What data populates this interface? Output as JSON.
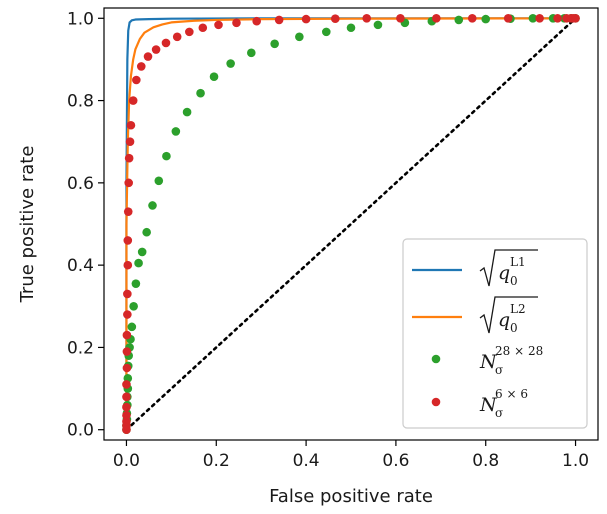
{
  "chart_data": {
    "type": "line",
    "xlabel": "False positive rate",
    "ylabel": "True positive rate",
    "xlim": [
      -0.05,
      1.05
    ],
    "ylim": [
      -0.025,
      1.025
    ],
    "xticks": [
      0.0,
      0.2,
      0.4,
      0.6,
      0.8,
      1.0
    ],
    "yticks": [
      0.0,
      0.2,
      0.4,
      0.6,
      0.8,
      1.0
    ],
    "tick_labels": [
      "0.0",
      "0.2",
      "0.4",
      "0.6",
      "0.8",
      "1.0"
    ],
    "legend_position": "lower-right",
    "series": [
      {
        "name": "√q₀ᴸ¹",
        "legend_base": "q",
        "legend_sub": "0",
        "legend_sup": "L1",
        "legend_sqrt": true,
        "style": "line",
        "color": "#1f77b4",
        "x": [
          0.0,
          0.0,
          0.002,
          0.004,
          0.007,
          0.012,
          0.02,
          0.05,
          0.1,
          0.3,
          0.6,
          1.0
        ],
        "y": [
          0.0,
          0.6,
          0.9,
          0.97,
          0.99,
          0.995,
          0.997,
          0.998,
          0.999,
          1.0,
          1.0,
          1.0
        ]
      },
      {
        "name": "√q₀ᴸ²",
        "legend_base": "q",
        "legend_sub": "0",
        "legend_sup": "L2",
        "legend_sqrt": true,
        "style": "line",
        "color": "#ff7f0e",
        "x": [
          0.0,
          0.0,
          0.003,
          0.006,
          0.01,
          0.015,
          0.02,
          0.03,
          0.04,
          0.06,
          0.08,
          0.1,
          0.15,
          0.2,
          0.3,
          0.5,
          1.0
        ],
        "y": [
          0.0,
          0.5,
          0.7,
          0.8,
          0.86,
          0.9,
          0.925,
          0.95,
          0.965,
          0.978,
          0.985,
          0.99,
          0.994,
          0.996,
          0.998,
          0.999,
          1.0
        ]
      },
      {
        "name": "N_σ^(28×28)",
        "legend_base": "N",
        "legend_sub": "σ",
        "legend_sup": "28 × 28",
        "legend_sqrt": false,
        "style": "scatter",
        "color": "#2ca02c",
        "x": [
          0.0,
          0.0,
          0.001,
          0.001,
          0.002,
          0.002,
          0.003,
          0.003,
          0.004,
          0.005,
          0.007,
          0.009,
          0.012,
          0.016,
          0.021,
          0.027,
          0.035,
          0.045,
          0.058,
          0.072,
          0.089,
          0.11,
          0.135,
          0.165,
          0.195,
          0.232,
          0.278,
          0.33,
          0.385,
          0.445,
          0.5,
          0.56,
          0.62,
          0.68,
          0.74,
          0.8,
          0.855,
          0.905,
          0.95,
          0.975,
          0.99,
          1.0
        ],
        "y": [
          0.0,
          0.01,
          0.025,
          0.04,
          0.06,
          0.08,
          0.1,
          0.125,
          0.155,
          0.18,
          0.2,
          0.22,
          0.25,
          0.3,
          0.355,
          0.405,
          0.432,
          0.48,
          0.545,
          0.605,
          0.665,
          0.725,
          0.772,
          0.818,
          0.858,
          0.89,
          0.916,
          0.938,
          0.955,
          0.967,
          0.977,
          0.984,
          0.989,
          0.993,
          0.996,
          0.998,
          0.999,
          1.0,
          1.0,
          1.0,
          1.0,
          1.0
        ]
      },
      {
        "name": "N_σ^(6×6)",
        "legend_base": "N",
        "legend_sub": "σ",
        "legend_sup": "6 × 6",
        "legend_sqrt": false,
        "style": "scatter",
        "color": "#d62728",
        "x": [
          0.0,
          0.0,
          0.0,
          0.0,
          0.0,
          0.0,
          0.0,
          0.001,
          0.001,
          0.001,
          0.002,
          0.002,
          0.003,
          0.003,
          0.004,
          0.005,
          0.006,
          0.008,
          0.01,
          0.015,
          0.022,
          0.033,
          0.048,
          0.066,
          0.088,
          0.113,
          0.14,
          0.17,
          0.205,
          0.245,
          0.29,
          0.34,
          0.4,
          0.465,
          0.535,
          0.61,
          0.69,
          0.77,
          0.85,
          0.92,
          0.96,
          0.98,
          0.99,
          0.995,
          1.0
        ],
        "y": [
          0.0,
          0.01,
          0.02,
          0.035,
          0.055,
          0.08,
          0.11,
          0.15,
          0.19,
          0.23,
          0.28,
          0.33,
          0.4,
          0.46,
          0.53,
          0.6,
          0.66,
          0.7,
          0.74,
          0.8,
          0.85,
          0.883,
          0.907,
          0.924,
          0.94,
          0.955,
          0.967,
          0.977,
          0.984,
          0.989,
          0.993,
          0.996,
          0.998,
          0.999,
          1.0,
          1.0,
          1.0,
          1.0,
          1.0,
          1.0,
          1.0,
          1.0,
          1.0,
          1.0,
          1.0
        ]
      },
      {
        "name": "",
        "style": "dotted",
        "color": "#000000",
        "x": [
          0.0,
          1.0
        ],
        "y": [
          0.0,
          1.0
        ]
      }
    ]
  }
}
